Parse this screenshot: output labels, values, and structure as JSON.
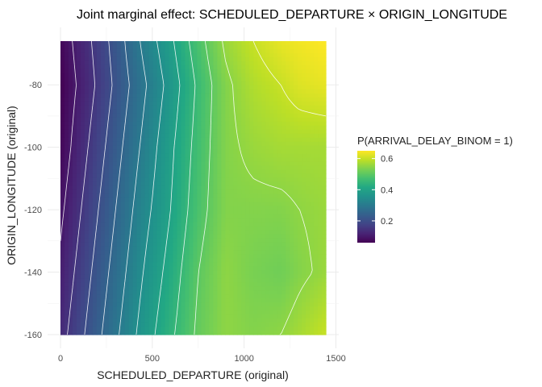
{
  "chart_data": {
    "type": "heatmap",
    "title": "Joint marginal effect: SCHEDULED_DEPARTURE × ORIGIN_LONGITUDE",
    "xlabel": "SCHEDULED_DEPARTURE (original)",
    "ylabel": "ORIGIN_LONGITUDE (original)",
    "x_ticks": [
      0,
      500,
      1000,
      1500
    ],
    "y_ticks": [
      -80,
      -100,
      -120,
      -140,
      -160
    ],
    "xlim": [
      0,
      1445
    ],
    "ylim": [
      -160,
      -66
    ],
    "grid": true,
    "legend": {
      "title": "P(ARRIVAL_DELAY_BINOM = 1)",
      "ticks": [
        0.2,
        0.4,
        0.6
      ],
      "range": [
        0.06,
        0.65
      ],
      "placement": "right",
      "colormap": "viridis"
    },
    "grid_x": [
      0,
      150,
      300,
      450,
      600,
      750,
      900,
      1050,
      1200,
      1300,
      1445
    ],
    "grid_y": [
      -66,
      -80,
      -100,
      -120,
      -140,
      -160
    ],
    "z": [
      [
        0.07,
        0.14,
        0.22,
        0.31,
        0.39,
        0.48,
        0.56,
        0.6,
        0.63,
        0.64,
        0.65
      ],
      [
        0.06,
        0.13,
        0.21,
        0.29,
        0.37,
        0.46,
        0.54,
        0.58,
        0.6,
        0.62,
        0.63
      ],
      [
        0.07,
        0.15,
        0.23,
        0.31,
        0.39,
        0.47,
        0.54,
        0.56,
        0.57,
        0.57,
        0.57
      ],
      [
        0.09,
        0.17,
        0.25,
        0.33,
        0.4,
        0.48,
        0.54,
        0.54,
        0.54,
        0.55,
        0.56
      ],
      [
        0.11,
        0.19,
        0.27,
        0.35,
        0.42,
        0.5,
        0.55,
        0.53,
        0.52,
        0.54,
        0.56
      ],
      [
        0.13,
        0.21,
        0.29,
        0.37,
        0.44,
        0.51,
        0.55,
        0.54,
        0.55,
        0.57,
        0.6
      ]
    ],
    "contour_levels": [
      0.1,
      0.15,
      0.2,
      0.25,
      0.3,
      0.35,
      0.4,
      0.45,
      0.5,
      0.55,
      0.6,
      0.65
    ]
  }
}
